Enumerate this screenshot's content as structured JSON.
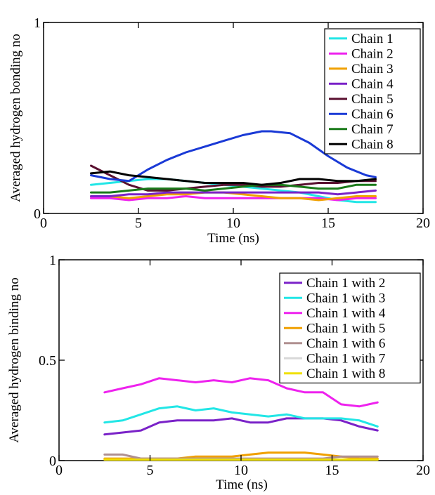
{
  "chart_data": [
    {
      "type": "line",
      "xlabel": "Time (ns)",
      "ylabel": "Averaged hydrogen bonding no",
      "xlim": [
        0,
        20
      ],
      "ylim": [
        0,
        1
      ],
      "xticks": [
        0,
        5,
        10,
        15,
        20
      ],
      "yticks": [
        0,
        1
      ],
      "xtick_labels": [
        "0",
        "5",
        "10",
        "15",
        "20"
      ],
      "ytick_labels": [
        "0",
        "1"
      ],
      "grid": false,
      "legend_position": "top-right",
      "series": [
        {
          "name": "Chain 1",
          "color": "#22e6e6",
          "x": [
            2.5,
            3.5,
            4.5,
            5.5,
            6.5,
            7.5,
            8.5,
            9.5,
            10.5,
            11.5,
            12.5,
            13.5,
            14.5,
            15.5,
            16.5,
            17.5
          ],
          "y": [
            0.15,
            0.16,
            0.17,
            0.18,
            0.18,
            0.17,
            0.16,
            0.15,
            0.14,
            0.13,
            0.12,
            0.11,
            0.09,
            0.07,
            0.06,
            0.06
          ]
        },
        {
          "name": "Chain 2",
          "color": "#ee22ee",
          "x": [
            2.5,
            3.5,
            4.5,
            5.5,
            6.5,
            7.5,
            8.5,
            9.5,
            10.5,
            11.5,
            12.5,
            13.5,
            14.5,
            15.5,
            16.5,
            17.5
          ],
          "y": [
            0.08,
            0.08,
            0.07,
            0.08,
            0.08,
            0.09,
            0.08,
            0.08,
            0.08,
            0.08,
            0.08,
            0.08,
            0.08,
            0.07,
            0.08,
            0.08
          ]
        },
        {
          "name": "Chain 3",
          "color": "#f0a000",
          "x": [
            2.5,
            3.5,
            4.5,
            5.5,
            6.5,
            7.5,
            8.5,
            9.5,
            10.5,
            11.5,
            12.5,
            13.5,
            14.5,
            15.5,
            16.5,
            17.5
          ],
          "y": [
            0.09,
            0.09,
            0.08,
            0.09,
            0.1,
            0.1,
            0.11,
            0.11,
            0.1,
            0.09,
            0.08,
            0.08,
            0.07,
            0.08,
            0.09,
            0.09
          ]
        },
        {
          "name": "Chain 4",
          "color": "#7a22c8",
          "x": [
            2.5,
            3.5,
            4.5,
            5.5,
            6.5,
            7.5,
            8.5,
            9.5,
            10.5,
            11.5,
            12.5,
            13.5,
            14.5,
            15.5,
            16.5,
            17.5
          ],
          "y": [
            0.09,
            0.09,
            0.1,
            0.1,
            0.11,
            0.11,
            0.11,
            0.11,
            0.11,
            0.11,
            0.11,
            0.11,
            0.11,
            0.1,
            0.11,
            0.12
          ]
        },
        {
          "name": "Chain 5",
          "color": "#5a1030",
          "x": [
            2.5,
            3.5,
            4.5,
            5.5,
            6.5,
            7.5,
            8.5,
            9.5,
            10.5,
            11.5,
            12.5,
            13.5,
            14.5,
            15.5,
            16.5,
            17.5
          ],
          "y": [
            0.25,
            0.2,
            0.15,
            0.12,
            0.12,
            0.13,
            0.14,
            0.15,
            0.15,
            0.14,
            0.14,
            0.15,
            0.16,
            0.16,
            0.17,
            0.17
          ]
        },
        {
          "name": "Chain 6",
          "color": "#1a3ad6",
          "x": [
            2.5,
            3.5,
            4.5,
            5.5,
            6.5,
            7.5,
            8.5,
            9.5,
            10.5,
            11.5,
            12,
            13,
            14,
            15,
            16,
            17,
            17.5
          ],
          "y": [
            0.2,
            0.18,
            0.17,
            0.23,
            0.28,
            0.32,
            0.35,
            0.38,
            0.41,
            0.43,
            0.43,
            0.42,
            0.37,
            0.3,
            0.24,
            0.2,
            0.19
          ]
        },
        {
          "name": "Chain 7",
          "color": "#1a7a1a",
          "x": [
            2.5,
            3.5,
            4.5,
            5.5,
            6.5,
            7.5,
            8.5,
            9.5,
            10.5,
            11.5,
            12.5,
            13.5,
            14.5,
            15.5,
            16.5,
            17.5
          ],
          "y": [
            0.11,
            0.11,
            0.12,
            0.13,
            0.13,
            0.13,
            0.12,
            0.13,
            0.14,
            0.15,
            0.15,
            0.14,
            0.13,
            0.13,
            0.15,
            0.15
          ]
        },
        {
          "name": "Chain 8",
          "color": "#000000",
          "x": [
            2.5,
            3.5,
            4.5,
            5.5,
            6.5,
            7.5,
            8.5,
            9.5,
            10.5,
            11.5,
            12.5,
            13.5,
            14.5,
            15.5,
            16.5,
            17.5
          ],
          "y": [
            0.21,
            0.22,
            0.2,
            0.19,
            0.18,
            0.17,
            0.16,
            0.16,
            0.16,
            0.15,
            0.16,
            0.18,
            0.18,
            0.17,
            0.17,
            0.18
          ]
        }
      ]
    },
    {
      "type": "line",
      "xlabel": "Time (ns)",
      "ylabel": "Averaged hydrogen binding no",
      "xlim": [
        0,
        20
      ],
      "ylim": [
        0,
        1
      ],
      "xticks": [
        0,
        5,
        10,
        15,
        20
      ],
      "yticks": [
        0,
        0.5,
        1
      ],
      "xtick_labels": [
        "0",
        "5",
        "10",
        "15",
        "20"
      ],
      "ytick_labels": [
        "0",
        "0.5",
        "1"
      ],
      "grid": false,
      "legend_position": "top-right",
      "series": [
        {
          "name": "Chain 1 with 2",
          "color": "#7a22c8",
          "x": [
            2.5,
            3.5,
            4.5,
            5.5,
            6.5,
            7.5,
            8.5,
            9.5,
            10.5,
            11.5,
            12.5,
            13.5,
            14.5,
            15.5,
            16.5,
            17.5
          ],
          "y": [
            0.13,
            0.14,
            0.15,
            0.19,
            0.2,
            0.2,
            0.2,
            0.21,
            0.19,
            0.19,
            0.21,
            0.21,
            0.21,
            0.2,
            0.17,
            0.15
          ]
        },
        {
          "name": "Chain 1 with 3",
          "color": "#22e6e6",
          "x": [
            2.5,
            3.5,
            4.5,
            5.5,
            6.5,
            7.5,
            8.5,
            9.5,
            10.5,
            11.5,
            12.5,
            13.5,
            14.5,
            15.5,
            16.5,
            17.5
          ],
          "y": [
            0.19,
            0.2,
            0.23,
            0.26,
            0.27,
            0.25,
            0.26,
            0.24,
            0.23,
            0.22,
            0.23,
            0.21,
            0.21,
            0.21,
            0.2,
            0.17
          ]
        },
        {
          "name": "Chain 1 with 4",
          "color": "#ee22ee",
          "x": [
            2.5,
            3.5,
            4.5,
            5.5,
            6.5,
            7.5,
            8.5,
            9.5,
            10.5,
            11.5,
            12.5,
            13.5,
            14.5,
            15.5,
            16.5,
            17.5
          ],
          "y": [
            0.34,
            0.36,
            0.38,
            0.41,
            0.4,
            0.39,
            0.4,
            0.39,
            0.41,
            0.4,
            0.36,
            0.34,
            0.34,
            0.28,
            0.27,
            0.29
          ]
        },
        {
          "name": "Chain 1 with 5",
          "color": "#f0a000",
          "x": [
            2.5,
            3.5,
            4.5,
            5.5,
            6.5,
            7.5,
            8.5,
            9.5,
            10.5,
            11.5,
            12.5,
            13.5,
            14.5,
            15.5,
            16.5,
            17.5
          ],
          "y": [
            0.01,
            0.01,
            0.01,
            0.01,
            0.01,
            0.02,
            0.02,
            0.02,
            0.03,
            0.04,
            0.04,
            0.04,
            0.03,
            0.02,
            0.01,
            0.01
          ]
        },
        {
          "name": "Chain 1 with 6",
          "color": "#b09090",
          "x": [
            2.5,
            3.5,
            4.5,
            5.5,
            6.5,
            7.5,
            8.5,
            9.5,
            10.5,
            11.5,
            12.5,
            13.5,
            14.5,
            15.5,
            16.5,
            17.5
          ],
          "y": [
            0.03,
            0.03,
            0.01,
            0.01,
            0.01,
            0.01,
            0.01,
            0.01,
            0.01,
            0.01,
            0.01,
            0.01,
            0.01,
            0.02,
            0.02,
            0.02
          ]
        },
        {
          "name": "Chain 1 with 7",
          "color": "#d8d8d8",
          "x": [
            2.5,
            3.5,
            4.5,
            5.5,
            6.5,
            7.5,
            8.5,
            9.5,
            10.5,
            11.5,
            12.5,
            13.5,
            14.5,
            15.5,
            16.5,
            17.5
          ],
          "y": [
            0.005,
            0.005,
            0.005,
            0.005,
            0.005,
            0.005,
            0.005,
            0.005,
            0.005,
            0.005,
            0.005,
            0.005,
            0.005,
            0.005,
            0.005,
            0.005
          ]
        },
        {
          "name": "Chain 1 with 8",
          "color": "#f0e000",
          "x": [
            2.5,
            3.5,
            4.5,
            5.5,
            6.5,
            7.5,
            8.5,
            9.5,
            10.5,
            11.5,
            12.5,
            13.5,
            14.5,
            15.5,
            16.5,
            17.5
          ],
          "y": [
            0.005,
            0.005,
            0.005,
            0.005,
            0.005,
            0.005,
            0.005,
            0.005,
            0.005,
            0.005,
            0.005,
            0.005,
            0.005,
            0.005,
            0.005,
            0.005
          ]
        }
      ]
    }
  ]
}
